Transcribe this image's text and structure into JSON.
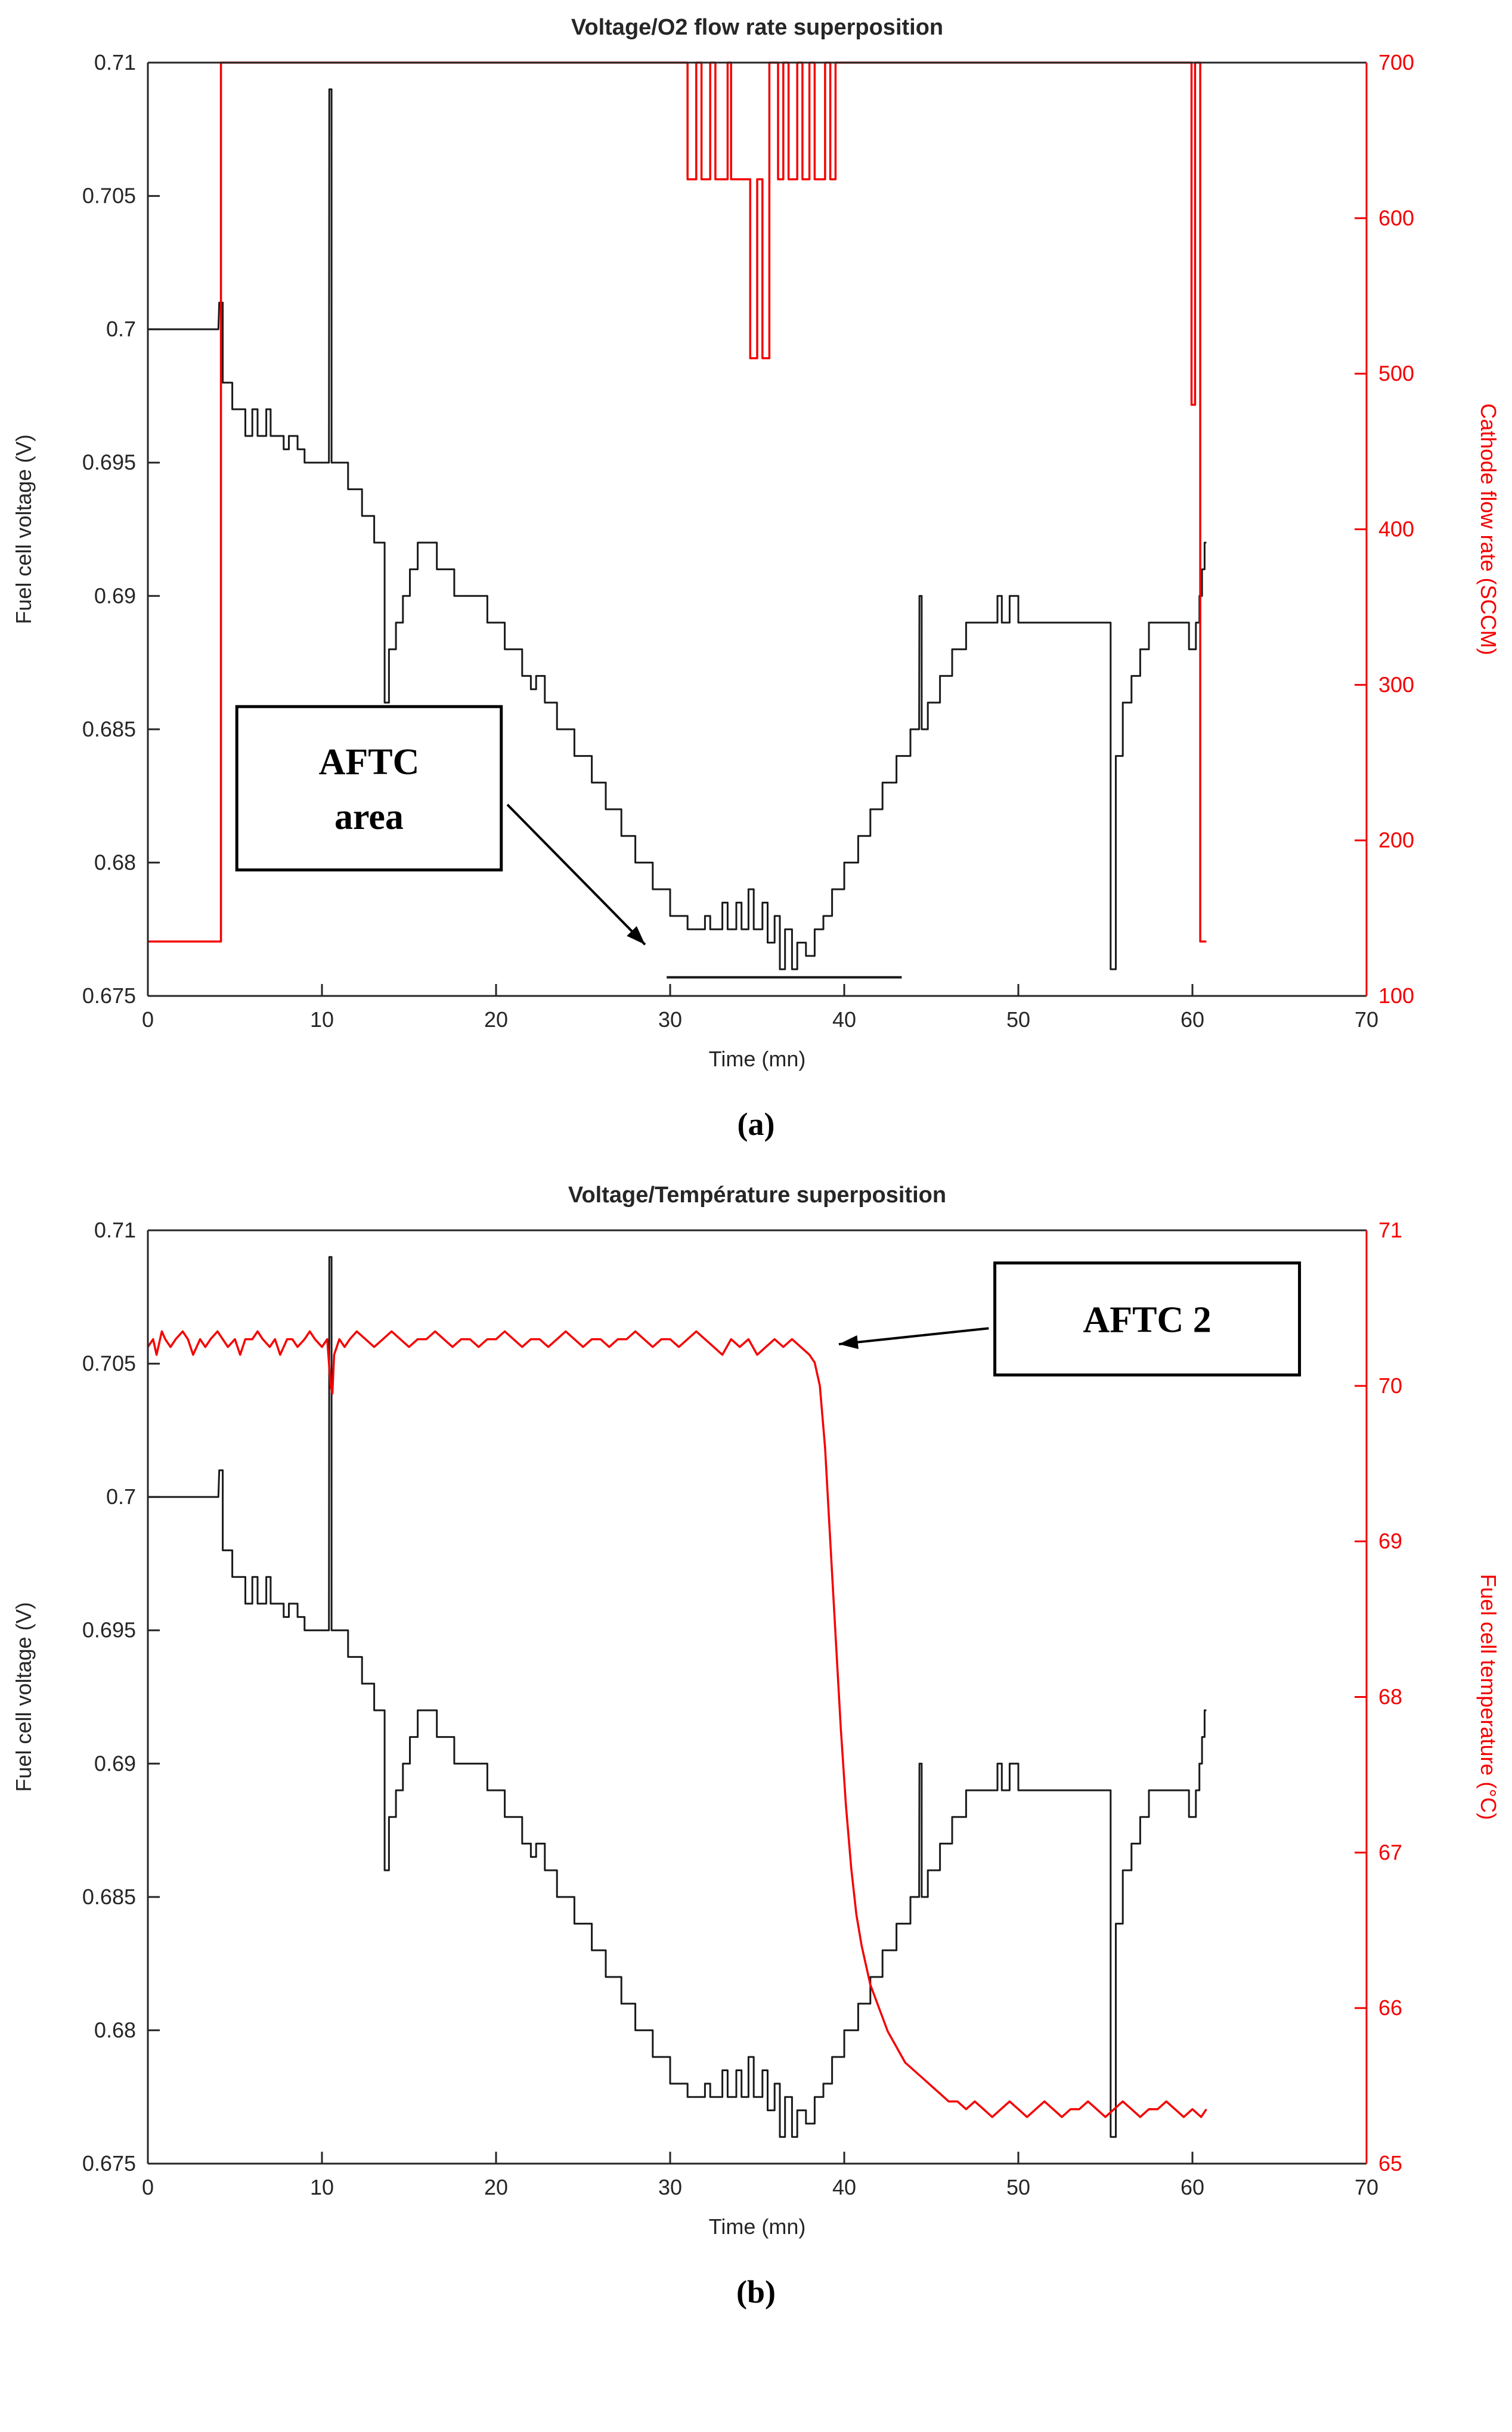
{
  "captions": {
    "a": "(a)",
    "b": "(b)"
  },
  "colors": {
    "black_series": "#1a1a1a",
    "red_series": "#f40000",
    "axis_black": "#262626",
    "annotation_border": "#000000"
  },
  "series_voltage": [
    [
      0,
      0.7
    ],
    [
      4.05,
      0.7
    ],
    [
      4.1,
      0.701
    ],
    [
      4.3,
      0.701
    ],
    [
      4.3,
      0.698
    ],
    [
      4.85,
      0.698
    ],
    [
      4.85,
      0.697
    ],
    [
      5.6,
      0.697
    ],
    [
      5.6,
      0.696
    ],
    [
      6.0,
      0.696
    ],
    [
      6.0,
      0.697
    ],
    [
      6.3,
      0.697
    ],
    [
      6.3,
      0.696
    ],
    [
      6.8,
      0.696
    ],
    [
      6.8,
      0.697
    ],
    [
      7.05,
      0.697
    ],
    [
      7.05,
      0.696
    ],
    [
      7.8,
      0.696
    ],
    [
      7.8,
      0.6955
    ],
    [
      8.1,
      0.6955
    ],
    [
      8.1,
      0.696
    ],
    [
      8.6,
      0.696
    ],
    [
      8.6,
      0.6955
    ],
    [
      9.0,
      0.6955
    ],
    [
      9.0,
      0.695
    ],
    [
      10.4,
      0.695
    ],
    [
      10.42,
      0.709
    ],
    [
      10.55,
      0.709
    ],
    [
      10.55,
      0.695
    ],
    [
      11.5,
      0.695
    ],
    [
      11.5,
      0.694
    ],
    [
      12.3,
      0.694
    ],
    [
      12.3,
      0.693
    ],
    [
      13.0,
      0.693
    ],
    [
      13.0,
      0.692
    ],
    [
      13.6,
      0.692
    ],
    [
      13.6,
      0.686
    ],
    [
      13.85,
      0.686
    ],
    [
      13.85,
      0.688
    ],
    [
      14.25,
      0.688
    ],
    [
      14.25,
      0.689
    ],
    [
      14.65,
      0.689
    ],
    [
      14.65,
      0.69
    ],
    [
      15.05,
      0.69
    ],
    [
      15.05,
      0.691
    ],
    [
      15.5,
      0.691
    ],
    [
      15.5,
      0.692
    ],
    [
      16.6,
      0.692
    ],
    [
      16.6,
      0.691
    ],
    [
      17.6,
      0.691
    ],
    [
      17.6,
      0.69
    ],
    [
      19.5,
      0.69
    ],
    [
      19.5,
      0.689
    ],
    [
      20.5,
      0.689
    ],
    [
      20.5,
      0.688
    ],
    [
      21.5,
      0.688
    ],
    [
      21.5,
      0.687
    ],
    [
      22.0,
      0.687
    ],
    [
      22.0,
      0.6865
    ],
    [
      22.3,
      0.6865
    ],
    [
      22.3,
      0.687
    ],
    [
      22.8,
      0.687
    ],
    [
      22.8,
      0.686
    ],
    [
      23.5,
      0.686
    ],
    [
      23.5,
      0.685
    ],
    [
      24.5,
      0.685
    ],
    [
      24.5,
      0.684
    ],
    [
      25.5,
      0.684
    ],
    [
      25.5,
      0.683
    ],
    [
      26.3,
      0.683
    ],
    [
      26.3,
      0.682
    ],
    [
      27.2,
      0.682
    ],
    [
      27.2,
      0.681
    ],
    [
      28.0,
      0.681
    ],
    [
      28.0,
      0.68
    ],
    [
      29.0,
      0.68
    ],
    [
      29.0,
      0.679
    ],
    [
      30.0,
      0.679
    ],
    [
      30.0,
      0.678
    ],
    [
      31.0,
      0.678
    ],
    [
      31.0,
      0.6775
    ],
    [
      32.0,
      0.6775
    ],
    [
      32.0,
      0.678
    ],
    [
      32.3,
      0.678
    ],
    [
      32.3,
      0.6775
    ],
    [
      33.0,
      0.6775
    ],
    [
      33.0,
      0.6785
    ],
    [
      33.3,
      0.6785
    ],
    [
      33.3,
      0.6775
    ],
    [
      33.8,
      0.6775
    ],
    [
      33.8,
      0.6785
    ],
    [
      34.1,
      0.6785
    ],
    [
      34.1,
      0.6775
    ],
    [
      34.5,
      0.6775
    ],
    [
      34.5,
      0.679
    ],
    [
      34.8,
      0.679
    ],
    [
      34.8,
      0.6775
    ],
    [
      35.3,
      0.6775
    ],
    [
      35.3,
      0.6785
    ],
    [
      35.6,
      0.6785
    ],
    [
      35.6,
      0.677
    ],
    [
      36.0,
      0.677
    ],
    [
      36.0,
      0.678
    ],
    [
      36.3,
      0.678
    ],
    [
      36.3,
      0.676
    ],
    [
      36.6,
      0.676
    ],
    [
      36.6,
      0.6775
    ],
    [
      37.0,
      0.6775
    ],
    [
      37.0,
      0.676
    ],
    [
      37.3,
      0.676
    ],
    [
      37.3,
      0.677
    ],
    [
      37.8,
      0.677
    ],
    [
      37.8,
      0.6765
    ],
    [
      38.3,
      0.6765
    ],
    [
      38.3,
      0.6775
    ],
    [
      38.8,
      0.6775
    ],
    [
      38.8,
      0.678
    ],
    [
      39.3,
      0.678
    ],
    [
      39.3,
      0.679
    ],
    [
      40.0,
      0.679
    ],
    [
      40.0,
      0.68
    ],
    [
      40.8,
      0.68
    ],
    [
      40.8,
      0.681
    ],
    [
      41.5,
      0.681
    ],
    [
      41.5,
      0.682
    ],
    [
      42.2,
      0.682
    ],
    [
      42.2,
      0.683
    ],
    [
      43.0,
      0.683
    ],
    [
      43.0,
      0.684
    ],
    [
      43.8,
      0.684
    ],
    [
      43.8,
      0.685
    ],
    [
      44.3,
      0.685
    ],
    [
      44.32,
      0.69
    ],
    [
      44.45,
      0.69
    ],
    [
      44.45,
      0.685
    ],
    [
      44.8,
      0.685
    ],
    [
      44.8,
      0.686
    ],
    [
      45.5,
      0.686
    ],
    [
      45.5,
      0.687
    ],
    [
      46.2,
      0.687
    ],
    [
      46.2,
      0.688
    ],
    [
      47.0,
      0.688
    ],
    [
      47.0,
      0.689
    ],
    [
      48.8,
      0.689
    ],
    [
      48.8,
      0.69
    ],
    [
      49.05,
      0.69
    ],
    [
      49.05,
      0.689
    ],
    [
      49.5,
      0.689
    ],
    [
      49.5,
      0.69
    ],
    [
      50.0,
      0.69
    ],
    [
      50.0,
      0.689
    ],
    [
      55.3,
      0.689
    ],
    [
      55.3,
      0.676
    ],
    [
      55.6,
      0.676
    ],
    [
      55.6,
      0.684
    ],
    [
      56.0,
      0.684
    ],
    [
      56.0,
      0.686
    ],
    [
      56.5,
      0.686
    ],
    [
      56.5,
      0.687
    ],
    [
      57.0,
      0.687
    ],
    [
      57.0,
      0.688
    ],
    [
      57.5,
      0.688
    ],
    [
      57.5,
      0.689
    ],
    [
      59.8,
      0.689
    ],
    [
      59.8,
      0.688
    ],
    [
      60.2,
      0.688
    ],
    [
      60.2,
      0.689
    ],
    [
      60.4,
      0.689
    ],
    [
      60.4,
      0.69
    ],
    [
      60.55,
      0.69
    ],
    [
      60.55,
      0.691
    ],
    [
      60.7,
      0.691
    ],
    [
      60.7,
      0.692
    ],
    [
      60.8,
      0.692
    ]
  ],
  "series_aftc_marker": [
    [
      29.8,
      0.6757
    ],
    [
      43.3,
      0.6757
    ]
  ],
  "series_flow": [
    [
      0,
      135
    ],
    [
      4.2,
      135
    ],
    [
      4.2,
      700
    ],
    [
      31.0,
      700
    ],
    [
      31.0,
      625
    ],
    [
      31.5,
      625
    ],
    [
      31.5,
      700
    ],
    [
      31.8,
      700
    ],
    [
      31.8,
      625
    ],
    [
      32.3,
      625
    ],
    [
      32.3,
      700
    ],
    [
      32.6,
      700
    ],
    [
      32.6,
      625
    ],
    [
      33.3,
      625
    ],
    [
      33.3,
      700
    ],
    [
      33.5,
      700
    ],
    [
      33.5,
      625
    ],
    [
      34.6,
      625
    ],
    [
      34.6,
      510
    ],
    [
      35.0,
      510
    ],
    [
      35.0,
      625
    ],
    [
      35.3,
      625
    ],
    [
      35.3,
      510
    ],
    [
      35.7,
      510
    ],
    [
      35.7,
      700
    ],
    [
      36.2,
      700
    ],
    [
      36.2,
      625
    ],
    [
      36.5,
      625
    ],
    [
      36.5,
      700
    ],
    [
      36.8,
      700
    ],
    [
      36.8,
      625
    ],
    [
      37.3,
      625
    ],
    [
      37.3,
      700
    ],
    [
      37.6,
      700
    ],
    [
      37.6,
      625
    ],
    [
      38.0,
      625
    ],
    [
      38.0,
      700
    ],
    [
      38.3,
      700
    ],
    [
      38.3,
      625
    ],
    [
      38.9,
      625
    ],
    [
      38.9,
      700
    ],
    [
      39.2,
      700
    ],
    [
      39.2,
      625
    ],
    [
      39.5,
      625
    ],
    [
      39.5,
      700
    ],
    [
      59.95,
      700
    ],
    [
      59.95,
      480
    ],
    [
      60.15,
      480
    ],
    [
      60.15,
      700
    ],
    [
      60.45,
      700
    ],
    [
      60.45,
      135
    ],
    [
      60.8,
      135
    ]
  ],
  "series_temperature": [
    [
      0,
      70.25
    ],
    [
      0.3,
      70.3
    ],
    [
      0.5,
      70.2
    ],
    [
      0.8,
      70.35
    ],
    [
      1.0,
      70.3
    ],
    [
      1.3,
      70.25
    ],
    [
      1.6,
      70.3
    ],
    [
      2.0,
      70.35
    ],
    [
      2.3,
      70.3
    ],
    [
      2.6,
      70.2
    ],
    [
      3.0,
      70.3
    ],
    [
      3.3,
      70.25
    ],
    [
      3.6,
      70.3
    ],
    [
      4.0,
      70.35
    ],
    [
      4.3,
      70.3
    ],
    [
      4.6,
      70.25
    ],
    [
      5.0,
      70.3
    ],
    [
      5.3,
      70.2
    ],
    [
      5.6,
      70.3
    ],
    [
      6.0,
      70.3
    ],
    [
      6.3,
      70.35
    ],
    [
      6.6,
      70.3
    ],
    [
      7.0,
      70.25
    ],
    [
      7.3,
      70.3
    ],
    [
      7.6,
      70.2
    ],
    [
      8.0,
      70.3
    ],
    [
      8.3,
      70.3
    ],
    [
      8.6,
      70.25
    ],
    [
      9.0,
      70.3
    ],
    [
      9.3,
      70.35
    ],
    [
      9.6,
      70.3
    ],
    [
      10.0,
      70.25
    ],
    [
      10.3,
      70.3
    ],
    [
      10.5,
      70.0
    ],
    [
      10.6,
      69.95
    ],
    [
      10.7,
      70.2
    ],
    [
      11.0,
      70.3
    ],
    [
      11.3,
      70.25
    ],
    [
      11.6,
      70.3
    ],
    [
      12.0,
      70.35
    ],
    [
      12.5,
      70.3
    ],
    [
      13.0,
      70.25
    ],
    [
      13.5,
      70.3
    ],
    [
      14.0,
      70.35
    ],
    [
      14.5,
      70.3
    ],
    [
      15.0,
      70.25
    ],
    [
      15.5,
      70.3
    ],
    [
      16.0,
      70.3
    ],
    [
      16.5,
      70.35
    ],
    [
      17.0,
      70.3
    ],
    [
      17.5,
      70.25
    ],
    [
      18.0,
      70.3
    ],
    [
      18.5,
      70.3
    ],
    [
      19.0,
      70.25
    ],
    [
      19.5,
      70.3
    ],
    [
      20.0,
      70.3
    ],
    [
      20.5,
      70.35
    ],
    [
      21.0,
      70.3
    ],
    [
      21.5,
      70.25
    ],
    [
      22.0,
      70.3
    ],
    [
      22.5,
      70.3
    ],
    [
      23.0,
      70.25
    ],
    [
      23.5,
      70.3
    ],
    [
      24.0,
      70.35
    ],
    [
      24.5,
      70.3
    ],
    [
      25.0,
      70.25
    ],
    [
      25.5,
      70.3
    ],
    [
      26.0,
      70.3
    ],
    [
      26.5,
      70.25
    ],
    [
      27.0,
      70.3
    ],
    [
      27.5,
      70.3
    ],
    [
      28.0,
      70.35
    ],
    [
      28.5,
      70.3
    ],
    [
      29.0,
      70.25
    ],
    [
      29.5,
      70.3
    ],
    [
      30.0,
      70.3
    ],
    [
      30.5,
      70.25
    ],
    [
      31.0,
      70.3
    ],
    [
      31.5,
      70.35
    ],
    [
      32.0,
      70.3
    ],
    [
      32.5,
      70.25
    ],
    [
      33.0,
      70.2
    ],
    [
      33.5,
      70.3
    ],
    [
      34.0,
      70.25
    ],
    [
      34.5,
      70.3
    ],
    [
      35.0,
      70.2
    ],
    [
      35.5,
      70.25
    ],
    [
      36.0,
      70.3
    ],
    [
      36.5,
      70.25
    ],
    [
      37.0,
      70.3
    ],
    [
      37.5,
      70.25
    ],
    [
      38.0,
      70.2
    ],
    [
      38.3,
      70.15
    ],
    [
      38.6,
      70.0
    ],
    [
      38.9,
      69.6
    ],
    [
      39.2,
      69.0
    ],
    [
      39.5,
      68.4
    ],
    [
      39.8,
      67.8
    ],
    [
      40.1,
      67.3
    ],
    [
      40.4,
      66.9
    ],
    [
      40.7,
      66.6
    ],
    [
      41.0,
      66.4
    ],
    [
      41.5,
      66.15
    ],
    [
      42.0,
      66.0
    ],
    [
      42.5,
      65.85
    ],
    [
      43.0,
      65.75
    ],
    [
      43.5,
      65.65
    ],
    [
      44.0,
      65.6
    ],
    [
      44.5,
      65.55
    ],
    [
      45.0,
      65.5
    ],
    [
      45.5,
      65.45
    ],
    [
      46.0,
      65.4
    ],
    [
      46.5,
      65.4
    ],
    [
      47.0,
      65.35
    ],
    [
      47.5,
      65.4
    ],
    [
      48.0,
      65.35
    ],
    [
      48.5,
      65.3
    ],
    [
      49.0,
      65.35
    ],
    [
      49.5,
      65.4
    ],
    [
      50.0,
      65.35
    ],
    [
      50.5,
      65.3
    ],
    [
      51.0,
      65.35
    ],
    [
      51.5,
      65.4
    ],
    [
      52.0,
      65.35
    ],
    [
      52.5,
      65.3
    ],
    [
      53.0,
      65.35
    ],
    [
      53.5,
      65.35
    ],
    [
      54.0,
      65.4
    ],
    [
      54.5,
      65.35
    ],
    [
      55.0,
      65.3
    ],
    [
      55.5,
      65.35
    ],
    [
      56.0,
      65.4
    ],
    [
      56.5,
      65.35
    ],
    [
      57.0,
      65.3
    ],
    [
      57.5,
      65.35
    ],
    [
      58.0,
      65.35
    ],
    [
      58.5,
      65.4
    ],
    [
      59.0,
      65.35
    ],
    [
      59.5,
      65.3
    ],
    [
      60.0,
      65.35
    ],
    [
      60.5,
      65.3
    ],
    [
      60.8,
      65.35
    ]
  ],
  "chart_data": [
    {
      "type": "line",
      "title": "Voltage/O2 flow rate superposition",
      "xlabel": "Time (mn)",
      "xlim": [
        0,
        70
      ],
      "x_ticks": [
        0,
        10,
        20,
        30,
        40,
        50,
        60,
        70
      ],
      "x_tick_labels": [
        "0",
        "10",
        "20",
        "30",
        "40",
        "50",
        "60",
        "70"
      ],
      "left": {
        "label": "Fuel cell voltage (V)",
        "lim": [
          0.675,
          0.71
        ],
        "ticks": [
          0.675,
          0.68,
          0.685,
          0.69,
          0.695,
          0.7,
          0.705,
          0.71
        ],
        "tick_labels": [
          "0.675",
          "0.68",
          "0.685",
          "0.69",
          "0.695",
          "0.7",
          "0.705",
          "0.71"
        ],
        "color": "#000000"
      },
      "right": {
        "label": "Cathode flow rate (SCCM)",
        "lim": [
          100,
          700
        ],
        "ticks": [
          100,
          200,
          300,
          400,
          500,
          600,
          700
        ],
        "tick_labels": [
          "100",
          "200",
          "300",
          "400",
          "500",
          "600",
          "700"
        ],
        "color": "#f40000"
      },
      "series": [
        {
          "name": "fuel-cell-voltage",
          "axis": "left",
          "color": "#1a1a1a",
          "width": 3,
          "ref": "series_voltage"
        },
        {
          "name": "aftc-area-marker",
          "axis": "left",
          "color": "#1a1a1a",
          "width": 4,
          "ref": "series_aftc_marker"
        },
        {
          "name": "cathode-flow-rate",
          "axis": "right",
          "color": "#f40000",
          "width": 3.5,
          "ref": "series_flow"
        }
      ],
      "annotation": {
        "lines": [
          "AFTC",
          "area"
        ],
        "box": [
          0.073,
          0.69,
          0.29,
          0.865
        ],
        "arrow": [
          0.295,
          0.795,
          0.408,
          0.945
        ]
      },
      "legend": "none",
      "grid": false
    },
    {
      "type": "line",
      "title": "Voltage/Température superposition",
      "xlabel": "Time (mn)",
      "xlim": [
        0,
        70
      ],
      "x_ticks": [
        0,
        10,
        20,
        30,
        40,
        50,
        60,
        70
      ],
      "x_tick_labels": [
        "0",
        "10",
        "20",
        "30",
        "40",
        "50",
        "60",
        "70"
      ],
      "left": {
        "label": "Fuel cell voltage (V)",
        "lim": [
          0.675,
          0.71
        ],
        "ticks": [
          0.675,
          0.68,
          0.685,
          0.69,
          0.695,
          0.7,
          0.705,
          0.71
        ],
        "tick_labels": [
          "0.675",
          "0.68",
          "0.685",
          "0.69",
          "0.695",
          "0.7",
          "0.705",
          "0.71"
        ],
        "color": "#000000"
      },
      "right": {
        "label": "Fuel cell temperature (°C)",
        "lim": [
          65,
          71
        ],
        "ticks": [
          65,
          66,
          67,
          68,
          69,
          70,
          71
        ],
        "tick_labels": [
          "65",
          "66",
          "67",
          "68",
          "69",
          "70",
          "71"
        ],
        "color": "#f40000"
      },
      "series": [
        {
          "name": "fuel-cell-voltage",
          "axis": "left",
          "color": "#1a1a1a",
          "width": 3,
          "ref": "series_voltage"
        },
        {
          "name": "fuel-cell-temperature",
          "axis": "right",
          "color": "#f40000",
          "width": 3.5,
          "ref": "series_temperature"
        }
      ],
      "annotation": {
        "lines": [
          "AFTC 2"
        ],
        "box": [
          0.695,
          0.035,
          0.945,
          0.155
        ],
        "arrow": [
          0.69,
          0.105,
          0.567,
          0.122
        ]
      },
      "legend": "none",
      "grid": false
    }
  ]
}
